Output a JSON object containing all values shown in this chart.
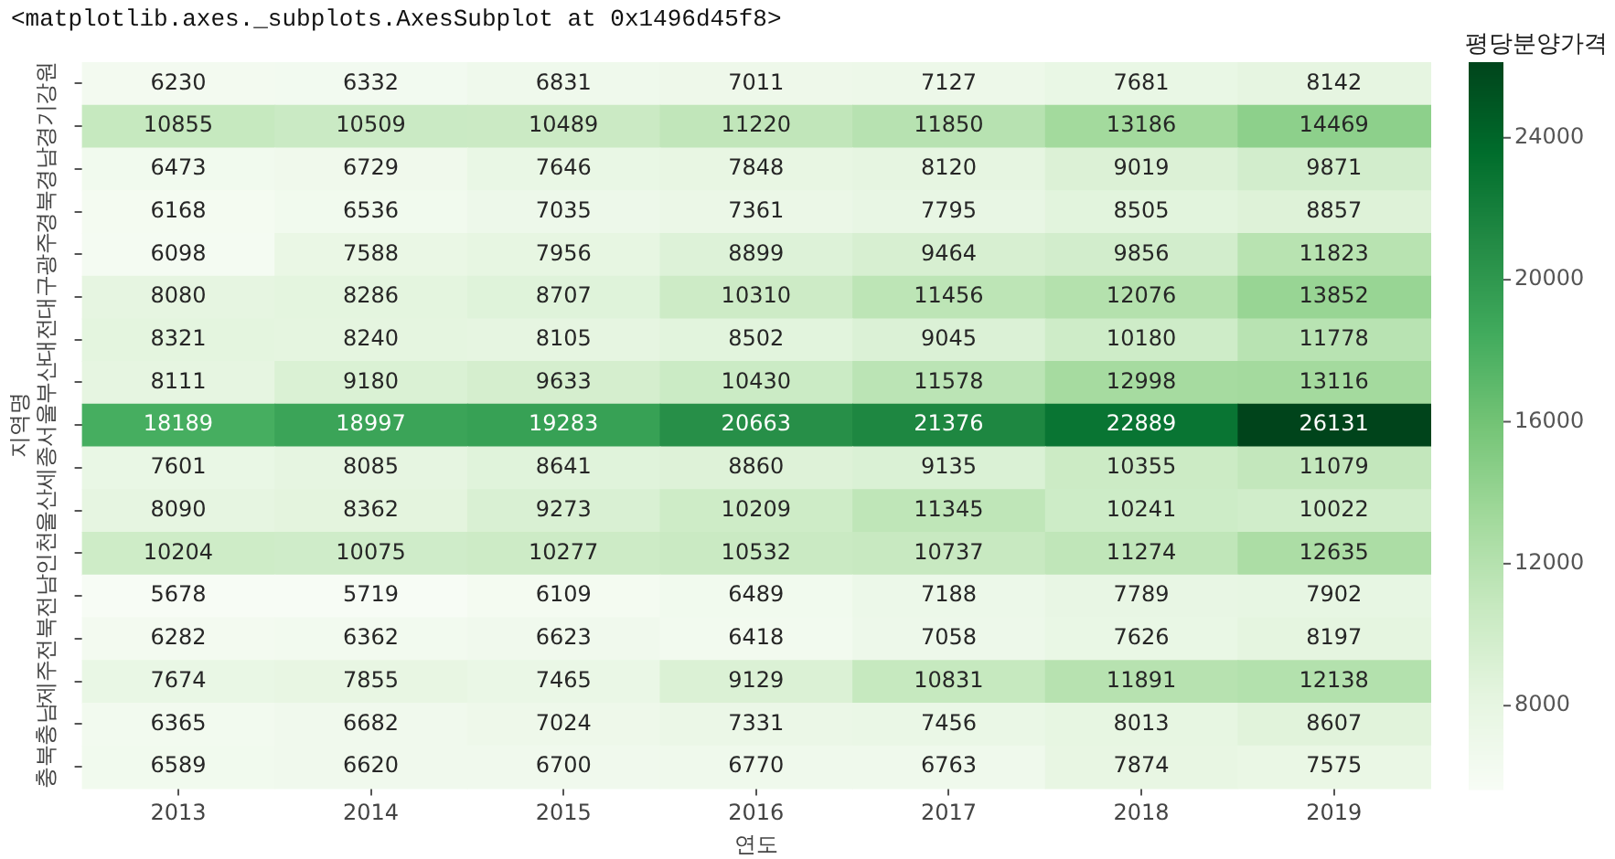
{
  "chart_data": {
    "type": "heatmap",
    "annotations": [
      "<matplotlib.axes._subplots.AxesSubplot at 0x1496d45f8>"
    ],
    "xlabel": "연도",
    "ylabel": "지역명",
    "clabel": "평당분양가격",
    "categories": [
      "2013",
      "2014",
      "2015",
      "2016",
      "2017",
      "2018",
      "2019"
    ],
    "y_categories": [
      "강원",
      "경기",
      "경남",
      "경북",
      "광주",
      "대구",
      "대전",
      "부산",
      "서울",
      "세종",
      "울산",
      "인천",
      "전남",
      "전북",
      "제주",
      "충남",
      "충북"
    ],
    "cells": [
      [
        6230,
        6332,
        6831,
        7011,
        7127,
        7681,
        8142
      ],
      [
        10855,
        10509,
        10489,
        11220,
        11850,
        13186,
        14469
      ],
      [
        6473,
        6729,
        7646,
        7848,
        8120,
        9019,
        9871
      ],
      [
        6168,
        6536,
        7035,
        7361,
        7795,
        8505,
        8857
      ],
      [
        6098,
        7588,
        7956,
        8899,
        9464,
        9856,
        11823
      ],
      [
        8080,
        8286,
        8707,
        10310,
        11456,
        12076,
        13852
      ],
      [
        8321,
        8240,
        8105,
        8502,
        9045,
        10180,
        11778
      ],
      [
        8111,
        9180,
        9633,
        10430,
        11578,
        12998,
        13116
      ],
      [
        18189,
        18997,
        19283,
        20663,
        21376,
        22889,
        26131
      ],
      [
        7601,
        8085,
        8641,
        8860,
        9135,
        10355,
        11079
      ],
      [
        8090,
        8362,
        9273,
        10209,
        11345,
        10241,
        10022
      ],
      [
        10204,
        10075,
        10277,
        10532,
        10737,
        11274,
        12635
      ],
      [
        5678,
        5719,
        6109,
        6489,
        7188,
        7789,
        7902
      ],
      [
        6282,
        6362,
        6623,
        6418,
        7058,
        7626,
        8197
      ],
      [
        7674,
        7855,
        7465,
        9129,
        10831,
        11891,
        12138
      ],
      [
        6365,
        6682,
        7024,
        7331,
        7456,
        8013,
        8607
      ],
      [
        6589,
        6620,
        6700,
        6770,
        6763,
        7874,
        7575
      ]
    ],
    "clim": [
      5678,
      26131
    ],
    "cticks": [
      8000,
      12000,
      16000,
      20000,
      24000
    ],
    "data_labels": true
  }
}
